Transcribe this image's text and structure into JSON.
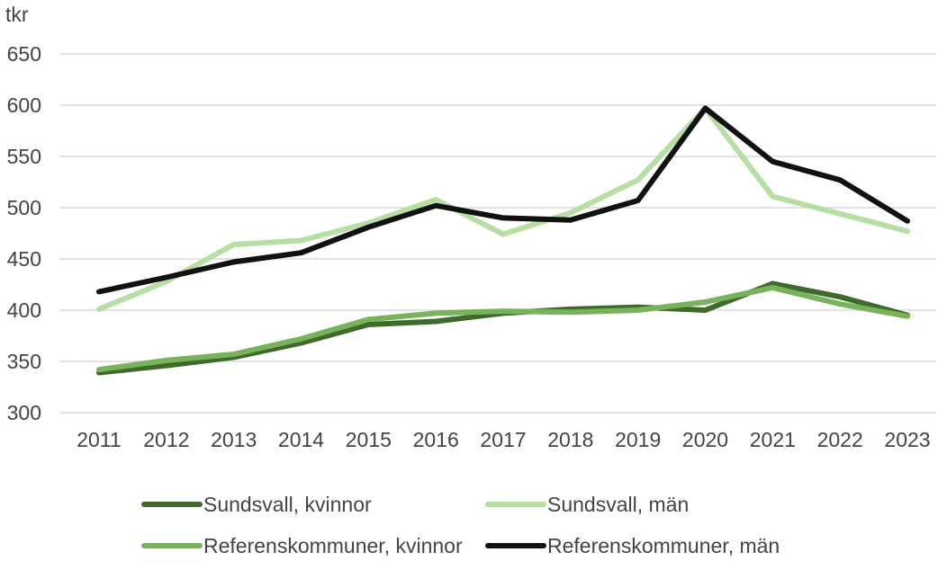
{
  "chart_data": {
    "type": "line",
    "unit_label": "tkr",
    "x": [
      "2011",
      "2012",
      "2013",
      "2014",
      "2015",
      "2016",
      "2017",
      "2018",
      "2019",
      "2020",
      "2021",
      "2022",
      "2023"
    ],
    "ylim": [
      300,
      650
    ],
    "yticks": [
      300,
      350,
      400,
      450,
      500,
      550,
      600,
      650
    ],
    "grid": true,
    "legend_position": "bottom",
    "series": [
      {
        "name": "Sundsvall, kvinnor",
        "color": "#3e6b2c",
        "values": [
          339,
          346,
          354,
          368,
          386,
          389,
          397,
          401,
          403,
          400,
          426,
          413,
          395
        ]
      },
      {
        "name": "Sundsvall, män",
        "color": "#b7dea3",
        "values": [
          401,
          428,
          464,
          468,
          485,
          508,
          474,
          495,
          527,
          597,
          511,
          494,
          477
        ]
      },
      {
        "name": "Referenskommuner, kvinnor",
        "color": "#78b35c",
        "values": [
          342,
          351,
          357,
          372,
          391,
          397,
          399,
          398,
          400,
          408,
          422,
          406,
          394
        ]
      },
      {
        "name": "Referenskommuner, män",
        "color": "#111111",
        "values": [
          418,
          432,
          447,
          456,
          481,
          502,
          490,
          488,
          507,
          597,
          545,
          527,
          487
        ]
      }
    ]
  }
}
